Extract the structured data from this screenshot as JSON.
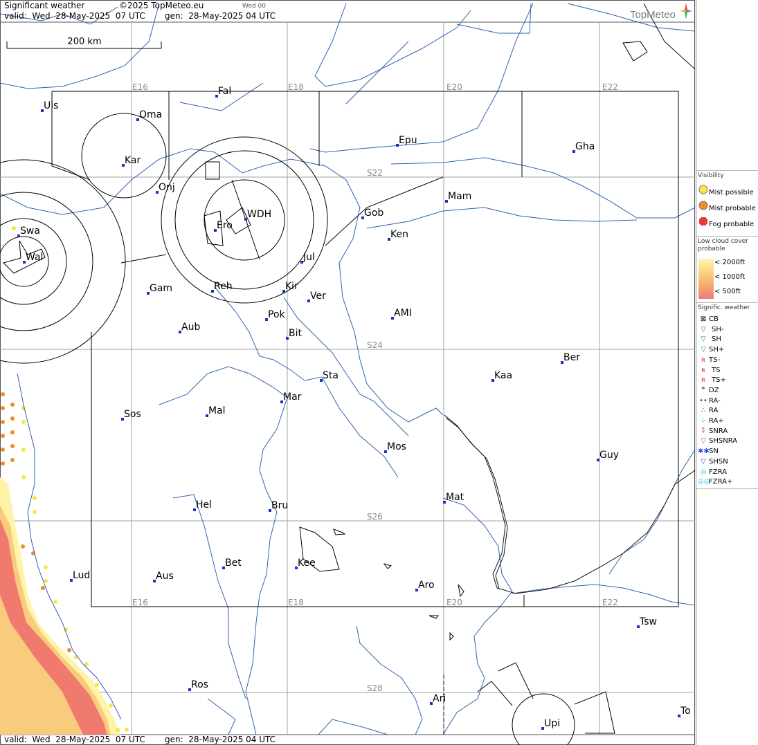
{
  "header": {
    "title": "Significant weather",
    "copyright": "©2025 TopMeteo.eu",
    "day_tag": "Wed 00",
    "valid": "valid:  Wed  28-May-2025  07 UTC",
    "gen": "gen:  28-May-2025 04 UTC",
    "brand": "TopMeteo"
  },
  "footer": {
    "valid": "valid:  Wed  28-May-2025  07 UTC",
    "gen": "gen:  28-May-2025 04 UTC"
  },
  "scale_label": "200 km",
  "grid_labels": {
    "e16_top": "E16",
    "e18_top": "E18",
    "e20_top": "E20",
    "e22_top": "E22",
    "e16_bot": "E16",
    "e18_bot": "E18",
    "e20_bot": "E20",
    "e22_bot": "E22",
    "s22": "S22",
    "s24": "S24",
    "s26": "S26",
    "s28": "S28"
  },
  "places": [
    "Uis",
    "Fal",
    "Oma",
    "Kar",
    "Onj",
    "Epu",
    "Gha",
    "Swa",
    "Wal",
    "Ero",
    "WDH",
    "Gob",
    "Mam",
    "Ken",
    "Jul",
    "Gam",
    "Reh",
    "Kir",
    "Ver",
    "Pok",
    "AMI",
    "Aub",
    "Bit",
    "Ber",
    "Sta",
    "Kaa",
    "Sos",
    "Mal",
    "Mar",
    "Mos",
    "Guy",
    "Hel",
    "Bru",
    "Mat",
    "Bet",
    "Kee",
    "Lud",
    "Aus",
    "Aro",
    "Tsw",
    "Ros",
    "Ari",
    "Upi",
    "To"
  ],
  "legend": {
    "visibility_title": "Visibility",
    "mist_possible": "Mist possible",
    "mist_probable": "Mist probable",
    "fog_probable": "Fog probable",
    "lowcloud_title": "Low cloud cover probable",
    "lc_2000": "< 2000ft",
    "lc_1000": "< 1000ft",
    "lc_500": "<   500ft",
    "sigwx_title": "Signific. weather",
    "sigwx": [
      "CB",
      "SH-",
      "SH",
      "SH+",
      "TS-",
      "TS",
      "TS+",
      "DZ",
      "RA-",
      "RA",
      "RA+",
      "SNRA",
      "SHSNRA",
      "SN",
      "SHSN",
      "FZRA",
      "FZRA+"
    ]
  },
  "colors": {
    "mist_possible": "#f6e64a",
    "mist_probable": "#f28a2a",
    "fog": "#e83a3a",
    "lc_2000": "#fff6b0",
    "lc_1000": "#f8c070",
    "lc_500": "#f07a7a",
    "river": "#2f62b0",
    "place_dot": "#1a2fc8",
    "grid": "#999999"
  }
}
